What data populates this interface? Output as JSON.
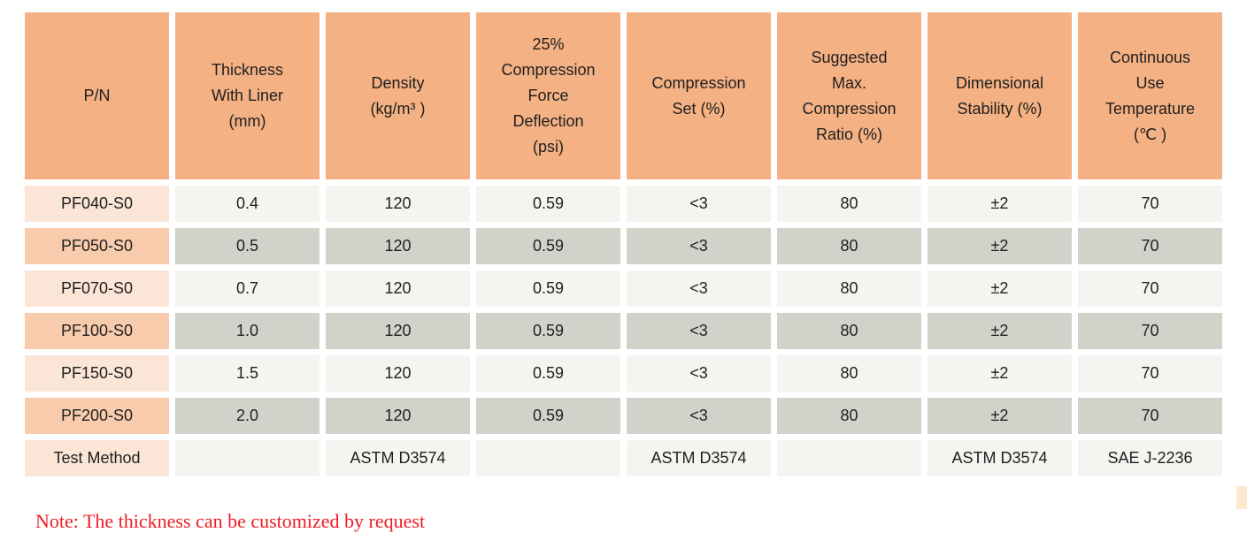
{
  "table": {
    "header": [
      "P/N",
      "Thickness\nWith Liner\n(mm)",
      "Density\n(kg/m³ )",
      "25%\nCompression\nForce\nDeflection\n(psi)",
      "Compression\nSet (%)",
      "Suggested\nMax.\nCompression\nRatio (%)",
      "Dimensional\nStability (%)",
      "Continuous\nUse\nTemperature\n(℃ )"
    ],
    "rows": [
      {
        "cells": [
          "PF040-S0",
          "0.4",
          "120",
          "0.59",
          "<3",
          "80",
          "±2",
          "70"
        ]
      },
      {
        "cells": [
          "PF050-S0",
          "0.5",
          "120",
          "0.59",
          "<3",
          "80",
          "±2",
          "70"
        ]
      },
      {
        "cells": [
          "PF070-S0",
          "0.7",
          "120",
          "0.59",
          "<3",
          "80",
          "±2",
          "70"
        ]
      },
      {
        "cells": [
          "PF100-S0",
          "1.0",
          "120",
          "0.59",
          "<3",
          "80",
          "±2",
          "70"
        ]
      },
      {
        "cells": [
          "PF150-S0",
          "1.5",
          "120",
          "0.59",
          "<3",
          "80",
          "±2",
          "70"
        ]
      },
      {
        "cells": [
          "PF200-S0",
          "2.0",
          "120",
          "0.59",
          "<3",
          "80",
          "±2",
          "70"
        ]
      },
      {
        "cells": [
          "Test Method",
          "",
          "ASTM D3574",
          "",
          "ASTM D3574",
          "",
          "ASTM D3574",
          "SAE J-2236"
        ]
      }
    ]
  },
  "note": "Note: The thickness can be customized by request",
  "colors": {
    "header_bg": "#F4B183",
    "label_light_bg": "#FBE5D6",
    "label_dark_bg": "#F8CBAD",
    "row_light_bg": "#F4F4F1",
    "row_dark_bg": "#D2D2CA",
    "text": "#1f1f1f",
    "note_text": "#EE1C25"
  }
}
